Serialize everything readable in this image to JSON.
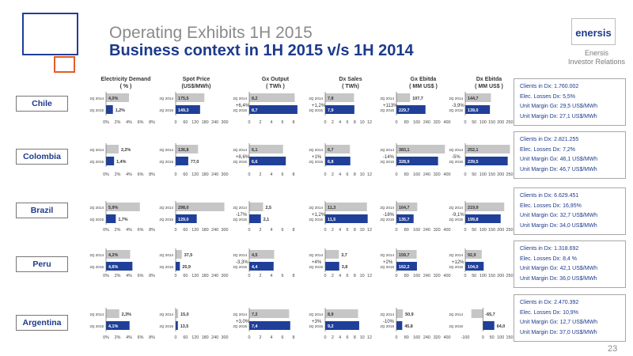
{
  "header": {
    "title_line1": "Operating Exhibits 1H 2015",
    "title_line2": "Business context in 1H 2015 v/s 1H 2014",
    "logo_text": "enersis",
    "company_line1": "Enersis",
    "company_line2": "Investor Relations",
    "page_number": "23"
  },
  "colors": {
    "bar_2014": "#c6c6c6",
    "bar_2015": "#1f3f99",
    "title_blue": "#1c3a8c",
    "title_gray": "#8a8a8a",
    "deco_orange": "#e35c2a"
  },
  "columns": [
    {
      "title_line1": "Electricity Demand",
      "title_line2": "( % )"
    },
    {
      "title_line1": "Spot Price",
      "title_line2": "(US$/MWh)"
    },
    {
      "title_line1": "Gx  Output",
      "title_line2": "( TWh )"
    },
    {
      "title_line1": "Dx Sales",
      "title_line2": "( TWh)"
    },
    {
      "title_line1": "Gx Ebitda",
      "title_line2": "( MM US$ )"
    },
    {
      "title_line1": "Dx Ebitda",
      "title_line2": "( MM US$ )"
    }
  ],
  "period_labels": [
    "2Q 2014",
    "2Q 2015"
  ],
  "rows": [
    {
      "country": "Chile",
      "info": [
        "Clients in Dx: 1.760.002",
        "Elec. Losses Dx: 5,5%",
        "Unit Margin Gx: 29,5 US$/MWh",
        "Unit Margin Dx: 27,1 US$/MWh"
      ],
      "charts": [
        {
          "v2014": 4.0,
          "v2015": 1.2,
          "l2014": "4,0%",
          "l2015": "1,2%",
          "change": ""
        },
        {
          "v2014": 175.5,
          "v2015": 149.3,
          "l2014": "175,5",
          "l2015": "149,3",
          "change": ""
        },
        {
          "v2014": 8.2,
          "v2015": 8.7,
          "l2014": "8,2",
          "l2015": "8,7",
          "change": "+6,4%"
        },
        {
          "v2014": 7.8,
          "v2015": 7.9,
          "l2014": "7,8",
          "l2015": "7,9",
          "change": "+1,2%"
        },
        {
          "v2014": 107.7,
          "v2015": 229.7,
          "l2014": "107,7",
          "l2015": "229,7",
          "change": "+113%"
        },
        {
          "v2014": 144.7,
          "v2015": 139.0,
          "l2014": "144,7",
          "l2015": "139,0",
          "change": "-3,9%"
        }
      ]
    },
    {
      "country": "Colombia",
      "info": [
        "Clients in Dx: 2.821.255",
        "Elec. Losses Dx: 7,2%",
        "Unit Margin Gx: 46,1 US$/MWh",
        "Unit Margin Dx: 46,7 US$/MWh"
      ],
      "charts": [
        {
          "v2014": 2.2,
          "v2015": 1.4,
          "l2014": "2,2%",
          "l2015": "1,4%",
          "change": ""
        },
        {
          "v2014": 136.8,
          "v2015": 77.0,
          "l2014": "136,8",
          "l2015": "77,0",
          "change": ""
        },
        {
          "v2014": 6.1,
          "v2015": 6.6,
          "l2014": "6,1",
          "l2015": "6,6",
          "change": "+8,6%"
        },
        {
          "v2014": 6.7,
          "v2015": 6.8,
          "l2014": "6,7",
          "l2015": "6,8",
          "change": "+1%"
        },
        {
          "v2014": 383.1,
          "v2015": 328.9,
          "l2014": "383,1",
          "l2015": "328,9",
          "change": "-14%"
        },
        {
          "v2014": 252.1,
          "v2015": 239.5,
          "l2014": "252,1",
          "l2015": "239,5",
          "change": "-5%"
        }
      ]
    },
    {
      "country": "Brazil",
      "info": [
        "Clients in Dx: 6.629.451",
        "Elec. Losses Dx: 16,95%",
        "Unit Margin Gx: 32,7 US$/MWh",
        "Unit Margin Dx: 34,0 US$/MWh"
      ],
      "charts": [
        {
          "v2014": 5.9,
          "v2015": 1.7,
          "l2014": "5,9%",
          "l2015": "1,7%",
          "change": ""
        },
        {
          "v2014": 298.0,
          "v2015": 129.0,
          "l2014": "298,0",
          "l2015": "129,0",
          "change": ""
        },
        {
          "v2014": 2.5,
          "v2015": 2.1,
          "l2014": "2,5",
          "l2015": "2,1",
          "change": "-17%"
        },
        {
          "v2014": 11.3,
          "v2015": 11.5,
          "l2014": "11,3",
          "l2015": "11,5",
          "change": "+1,2%"
        },
        {
          "v2014": 164.7,
          "v2015": 135.7,
          "l2014": "164,7",
          "l2015": "135,7",
          "change": "-18%"
        },
        {
          "v2014": 219.9,
          "v2015": 199.8,
          "l2014": "219,9",
          "l2015": "199,8",
          "change": "-9,1%"
        }
      ]
    },
    {
      "country": "Peru",
      "info": [
        "Clients in Dx: 1.318.692",
        "Elec. Losses Dx: 8,4 %",
        "Unit Margin Gx: 42,1 US$/MWh",
        "Unit Margin Dx: 36,0 US$/MWh"
      ],
      "charts": [
        {
          "v2014": 4.2,
          "v2015": 4.6,
          "l2014": "4,2%",
          "l2015": "4,6%",
          "change": ""
        },
        {
          "v2014": 37.5,
          "v2015": 25.9,
          "l2014": "37,5",
          "l2015": "25,9",
          "change": ""
        },
        {
          "v2014": 4.5,
          "v2015": 4.4,
          "l2014": "4,5",
          "l2015": "4,4",
          "change": "-3,3%"
        },
        {
          "v2014": 3.7,
          "v2015": 3.8,
          "l2014": "3,7",
          "l2015": "3,8",
          "change": "+4%"
        },
        {
          "v2014": 159.7,
          "v2015": 162.2,
          "l2014": "159,7",
          "l2015": "162,2",
          "change": "+2%"
        },
        {
          "v2014": 92.9,
          "v2015": 104.0,
          "l2014": "92,9",
          "l2015": "104,0",
          "change": "+12%"
        }
      ]
    },
    {
      "country": "Argentina",
      "info": [
        "Clients in Dx: 2.470.392",
        "Elec. Losses Dx: 10,9%",
        "Unit Margin Gx: 12,7 US$/MWh",
        "Unit Margin Dx: 37,0 US$/MWh"
      ],
      "charts": [
        {
          "v2014": 2.3,
          "v2015": 4.1,
          "l2014": "2,3%",
          "l2015": "4,1%",
          "change": ""
        },
        {
          "v2014": 15.0,
          "v2015": 13.5,
          "l2014": "15,0",
          "l2015": "13,5",
          "change": ""
        },
        {
          "v2014": 7.2,
          "v2015": 7.4,
          "l2014": "7,2",
          "l2015": "7,4",
          "change": "+3,0%"
        },
        {
          "v2014": 8.9,
          "v2015": 9.2,
          "l2014": "8,9",
          "l2015": "9,2",
          "change": "+3%"
        },
        {
          "v2014": 50.9,
          "v2015": 45.8,
          "l2014": "50,9",
          "l2015": "45,8",
          "change": "-10%"
        },
        {
          "v2014": -65.7,
          "v2015": 64.0,
          "l2014": "-65,7",
          "l2015": "64,0",
          "change": ""
        }
      ]
    }
  ],
  "chart_data": {
    "type": "bar",
    "orientation": "horizontal",
    "categories": [
      "2Q 2014",
      "2Q 2015"
    ],
    "axes": [
      {
        "title": "Electricity Demand",
        "unit": "%",
        "min": 0,
        "max": 8,
        "ticks": [
          "0%",
          "2%",
          "4%",
          "6%",
          "8%"
        ]
      },
      {
        "title": "Spot Price",
        "unit": "US$/MWh",
        "min": 0,
        "max": 300,
        "ticks": [
          "0",
          "60",
          "120",
          "180",
          "240",
          "300"
        ]
      },
      {
        "title": "Gx  Output",
        "unit": "TWh",
        "min": 0,
        "max": 8,
        "ticks": [
          "0",
          "2",
          "4",
          "6",
          "8"
        ]
      },
      {
        "title": "Dx Sales",
        "unit": "TWh",
        "min": 0,
        "max": 12,
        "ticks": [
          "0",
          "2",
          "4",
          "6",
          "8",
          "10",
          "12"
        ]
      },
      {
        "title": "Gx Ebitda",
        "unit": "MM US$",
        "min": 0,
        "max": 400,
        "ticks": [
          "0",
          "80",
          "160",
          "240",
          "320",
          "400"
        ]
      },
      {
        "title": "Dx Ebitda",
        "unit": "MM US$",
        "min": 0,
        "max": 250,
        "ticks": [
          "0",
          "50",
          "100",
          "150",
          "200",
          "250"
        ]
      }
    ],
    "argentina_dx_ebitda_axis": {
      "min": -100,
      "max": 150,
      "ticks": [
        "-100",
        "0",
        "50",
        "100",
        "150"
      ]
    },
    "legend": "none",
    "grid": false
  }
}
